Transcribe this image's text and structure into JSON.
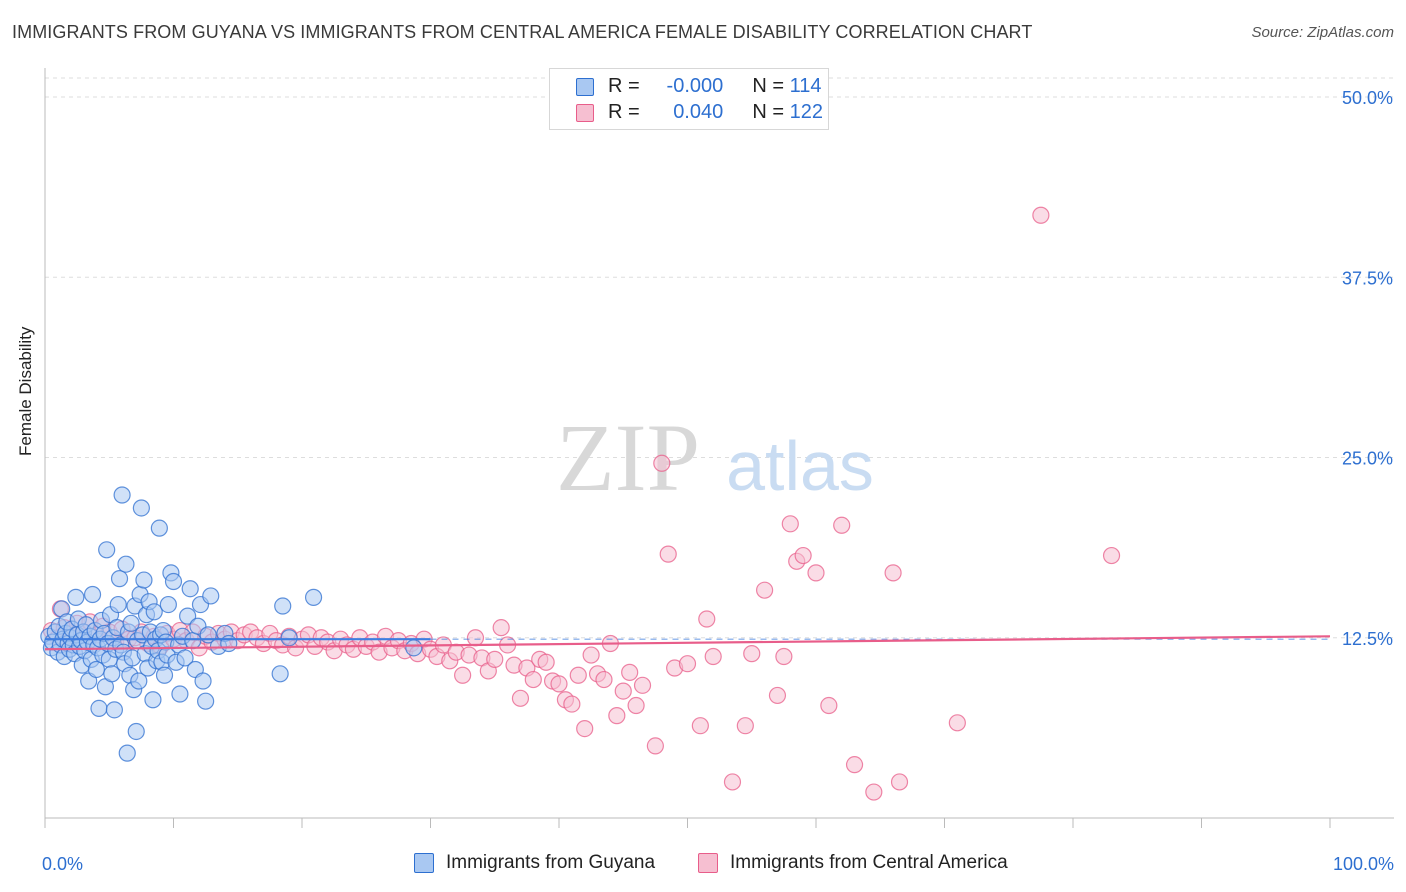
{
  "title": "IMMIGRANTS FROM GUYANA VS IMMIGRANTS FROM CENTRAL AMERICA FEMALE DISABILITY CORRELATION CHART",
  "source": "Source: ZipAtlas.com",
  "watermark": {
    "zip": "ZIP",
    "atlas": "atlas"
  },
  "colors": {
    "blue": "#2d6fd0",
    "blue_fill": "#a9c8f2",
    "blue_line": "#3d7de0",
    "pink": "#e85d8a",
    "pink_fill": "#f6bfd1",
    "grid": "#dddddd",
    "axis_label": "#2d6fd0"
  },
  "legend_top": {
    "rows": [
      {
        "r_label": "R =",
        "r_value": "-0.000",
        "n_label": "N =",
        "n_value": "114",
        "series": "blue"
      },
      {
        "r_label": "R =",
        "r_value": "0.040",
        "n_label": "N =",
        "n_value": "122",
        "series": "pink"
      }
    ]
  },
  "legend_bottom": [
    {
      "label": "Immigrants from Guyana",
      "series": "blue"
    },
    {
      "label": "Immigrants from Central America",
      "series": "pink"
    }
  ],
  "chart_data": {
    "type": "scatter",
    "title": "IMMIGRANTS FROM GUYANA VS IMMIGRANTS FROM CENTRAL AMERICA FEMALE DISABILITY CORRELATION CHART",
    "xlabel": "",
    "ylabel": "Female Disability",
    "xlim": [
      0,
      100
    ],
    "ylim": [
      0,
      50
    ],
    "x_tick_labels": [
      {
        "value": 0,
        "label": "0.0%"
      },
      {
        "value": 100,
        "label": "100.0%"
      }
    ],
    "y_tick_labels": [
      {
        "value": 12.5,
        "label": "12.5%"
      },
      {
        "value": 25.0,
        "label": "25.0%"
      },
      {
        "value": 37.5,
        "label": "37.5%"
      },
      {
        "value": 50.0,
        "label": "50.0%"
      }
    ],
    "series": [
      {
        "name": "Immigrants from Guyana",
        "color": "blue",
        "R": -0.0,
        "N": 114,
        "trend": {
          "x": [
            0,
            30
          ],
          "y": [
            12.4,
            12.4
          ],
          "dashed_extension_to": 100
        },
        "points": [
          [
            0.3,
            12.6
          ],
          [
            0.5,
            11.8
          ],
          [
            0.6,
            12.2
          ],
          [
            0.8,
            12.9
          ],
          [
            1.0,
            11.5
          ],
          [
            1.1,
            13.3
          ],
          [
            1.2,
            12.0
          ],
          [
            1.3,
            14.5
          ],
          [
            1.4,
            12.4
          ],
          [
            1.5,
            11.2
          ],
          [
            1.6,
            12.8
          ],
          [
            1.7,
            13.6
          ],
          [
            1.8,
            12.1
          ],
          [
            1.9,
            11.7
          ],
          [
            2.0,
            12.5
          ],
          [
            2.1,
            13.1
          ],
          [
            2.2,
            12.0
          ],
          [
            2.3,
            11.4
          ],
          [
            2.4,
            15.3
          ],
          [
            2.5,
            12.7
          ],
          [
            2.6,
            13.8
          ],
          [
            2.7,
            11.9
          ],
          [
            2.8,
            12.3
          ],
          [
            2.9,
            10.6
          ],
          [
            3.0,
            12.9
          ],
          [
            3.1,
            11.6
          ],
          [
            3.2,
            13.4
          ],
          [
            3.3,
            12.2
          ],
          [
            3.4,
            9.5
          ],
          [
            3.5,
            12.6
          ],
          [
            3.6,
            11.0
          ],
          [
            3.7,
            15.5
          ],
          [
            3.8,
            12.0
          ],
          [
            3.9,
            13.0
          ],
          [
            4.0,
            10.3
          ],
          [
            4.1,
            11.8
          ],
          [
            4.2,
            7.6
          ],
          [
            4.3,
            12.4
          ],
          [
            4.4,
            13.7
          ],
          [
            4.5,
            11.3
          ],
          [
            4.6,
            12.8
          ],
          [
            4.7,
            9.1
          ],
          [
            4.8,
            18.6
          ],
          [
            4.9,
            12.1
          ],
          [
            5.0,
            11.0
          ],
          [
            5.1,
            14.1
          ],
          [
            5.2,
            10.0
          ],
          [
            5.3,
            12.5
          ],
          [
            5.4,
            7.5
          ],
          [
            5.5,
            11.7
          ],
          [
            5.6,
            13.2
          ],
          [
            5.7,
            14.8
          ],
          [
            5.8,
            16.6
          ],
          [
            5.9,
            12.0
          ],
          [
            6.0,
            22.4
          ],
          [
            6.1,
            11.5
          ],
          [
            6.2,
            10.7
          ],
          [
            6.3,
            17.6
          ],
          [
            6.4,
            4.5
          ],
          [
            6.5,
            12.9
          ],
          [
            6.6,
            9.9
          ],
          [
            6.7,
            13.5
          ],
          [
            6.8,
            11.1
          ],
          [
            6.9,
            8.9
          ],
          [
            7.0,
            14.7
          ],
          [
            7.1,
            6.0
          ],
          [
            7.2,
            12.3
          ],
          [
            7.3,
            9.5
          ],
          [
            7.4,
            15.5
          ],
          [
            7.5,
            21.5
          ],
          [
            7.6,
            12.7
          ],
          [
            7.7,
            16.5
          ],
          [
            7.8,
            11.4
          ],
          [
            7.9,
            14.1
          ],
          [
            8.0,
            10.4
          ],
          [
            8.1,
            15.0
          ],
          [
            8.2,
            12.9
          ],
          [
            8.3,
            11.9
          ],
          [
            8.4,
            8.2
          ],
          [
            8.5,
            14.3
          ],
          [
            8.6,
            12.4
          ],
          [
            8.7,
            10.9
          ],
          [
            8.8,
            11.6
          ],
          [
            8.9,
            20.1
          ],
          [
            9.0,
            12.7
          ],
          [
            9.1,
            10.8
          ],
          [
            9.2,
            13.0
          ],
          [
            9.3,
            9.9
          ],
          [
            9.4,
            12.2
          ],
          [
            9.5,
            11.3
          ],
          [
            9.6,
            14.8
          ],
          [
            9.8,
            17.0
          ],
          [
            10.0,
            16.4
          ],
          [
            10.2,
            10.8
          ],
          [
            10.4,
            12.0
          ],
          [
            10.5,
            8.6
          ],
          [
            10.7,
            12.6
          ],
          [
            10.9,
            11.1
          ],
          [
            11.1,
            14.0
          ],
          [
            11.3,
            15.9
          ],
          [
            11.5,
            12.3
          ],
          [
            11.7,
            10.3
          ],
          [
            11.9,
            13.3
          ],
          [
            12.1,
            14.8
          ],
          [
            12.3,
            9.5
          ],
          [
            12.5,
            8.1
          ],
          [
            12.7,
            12.7
          ],
          [
            12.9,
            15.4
          ],
          [
            13.5,
            11.9
          ],
          [
            14.0,
            12.8
          ],
          [
            14.3,
            12.1
          ],
          [
            18.5,
            14.7
          ],
          [
            19.0,
            12.5
          ],
          [
            18.3,
            10.0
          ],
          [
            20.9,
            15.3
          ],
          [
            28.7,
            11.8
          ]
        ]
      },
      {
        "name": "Immigrants from Central America",
        "color": "pink",
        "R": 0.04,
        "N": 122,
        "trend": {
          "x": [
            0,
            100
          ],
          "y": [
            11.7,
            12.6
          ]
        },
        "points": [
          [
            0.5,
            13.0
          ],
          [
            1.0,
            12.5
          ],
          [
            1.2,
            14.5
          ],
          [
            1.5,
            13.2
          ],
          [
            2.0,
            12.8
          ],
          [
            2.5,
            13.5
          ],
          [
            3.0,
            12.9
          ],
          [
            3.5,
            13.6
          ],
          [
            4.0,
            12.7
          ],
          [
            4.5,
            13.3
          ],
          [
            5.0,
            12.9
          ],
          [
            5.5,
            12.2
          ],
          [
            6.0,
            13.1
          ],
          [
            6.5,
            12.4
          ],
          [
            7.0,
            12.5
          ],
          [
            7.5,
            12.9
          ],
          [
            8.0,
            12.1
          ],
          [
            8.5,
            12.6
          ],
          [
            9.0,
            11.9
          ],
          [
            9.5,
            12.8
          ],
          [
            10.0,
            12.4
          ],
          [
            10.5,
            13.0
          ],
          [
            11.0,
            12.3
          ],
          [
            11.5,
            12.9
          ],
          [
            12.0,
            11.8
          ],
          [
            12.5,
            12.6
          ],
          [
            13.0,
            12.2
          ],
          [
            13.5,
            12.8
          ],
          [
            14.0,
            12.4
          ],
          [
            14.5,
            12.9
          ],
          [
            15.0,
            12.3
          ],
          [
            15.5,
            12.7
          ],
          [
            16.0,
            12.9
          ],
          [
            16.5,
            12.5
          ],
          [
            17.0,
            12.1
          ],
          [
            17.5,
            12.8
          ],
          [
            18.0,
            12.3
          ],
          [
            18.5,
            12.0
          ],
          [
            19.0,
            12.6
          ],
          [
            19.5,
            11.8
          ],
          [
            20.0,
            12.4
          ],
          [
            20.5,
            12.7
          ],
          [
            21.0,
            11.9
          ],
          [
            21.5,
            12.5
          ],
          [
            22.0,
            12.2
          ],
          [
            22.5,
            11.6
          ],
          [
            23.0,
            12.4
          ],
          [
            23.5,
            12.0
          ],
          [
            24.0,
            11.7
          ],
          [
            24.5,
            12.5
          ],
          [
            25.0,
            11.9
          ],
          [
            25.5,
            12.2
          ],
          [
            26.0,
            11.5
          ],
          [
            26.5,
            12.6
          ],
          [
            27.0,
            11.8
          ],
          [
            27.5,
            12.3
          ],
          [
            28.0,
            11.6
          ],
          [
            28.5,
            12.1
          ],
          [
            29.0,
            11.4
          ],
          [
            29.5,
            12.4
          ],
          [
            30.0,
            11.7
          ],
          [
            30.5,
            11.2
          ],
          [
            31.0,
            12.0
          ],
          [
            31.5,
            10.9
          ],
          [
            32.0,
            11.5
          ],
          [
            32.5,
            9.9
          ],
          [
            33.0,
            11.3
          ],
          [
            33.5,
            12.5
          ],
          [
            34.0,
            11.1
          ],
          [
            34.5,
            10.2
          ],
          [
            35.0,
            11.0
          ],
          [
            35.5,
            13.2
          ],
          [
            36.0,
            12.0
          ],
          [
            36.5,
            10.6
          ],
          [
            37.0,
            8.3
          ],
          [
            37.5,
            10.4
          ],
          [
            38.0,
            9.6
          ],
          [
            38.5,
            11.0
          ],
          [
            39.0,
            10.8
          ],
          [
            39.5,
            9.5
          ],
          [
            40.0,
            9.3
          ],
          [
            40.5,
            8.2
          ],
          [
            41.0,
            7.9
          ],
          [
            41.5,
            9.9
          ],
          [
            42.0,
            6.2
          ],
          [
            42.5,
            11.3
          ],
          [
            43.0,
            10.0
          ],
          [
            43.5,
            9.6
          ],
          [
            44.0,
            12.1
          ],
          [
            44.5,
            7.1
          ],
          [
            45.0,
            8.8
          ],
          [
            45.5,
            10.1
          ],
          [
            46.0,
            7.8
          ],
          [
            46.5,
            9.2
          ],
          [
            47.5,
            5.0
          ],
          [
            48.0,
            24.6
          ],
          [
            48.5,
            18.3
          ],
          [
            49.0,
            10.4
          ],
          [
            50.0,
            10.7
          ],
          [
            51.0,
            6.4
          ],
          [
            51.5,
            13.8
          ],
          [
            52.0,
            11.2
          ],
          [
            53.5,
            2.5
          ],
          [
            54.5,
            6.4
          ],
          [
            55.0,
            11.4
          ],
          [
            56.0,
            15.8
          ],
          [
            57.0,
            8.5
          ],
          [
            57.5,
            11.2
          ],
          [
            58.0,
            20.4
          ],
          [
            58.5,
            17.8
          ],
          [
            59.0,
            18.2
          ],
          [
            60.0,
            17.0
          ],
          [
            61.0,
            7.8
          ],
          [
            62.0,
            20.3
          ],
          [
            63.0,
            3.7
          ],
          [
            64.5,
            1.8
          ],
          [
            66.0,
            17.0
          ],
          [
            66.5,
            2.5
          ],
          [
            71.0,
            6.6
          ],
          [
            77.5,
            41.8
          ],
          [
            83.0,
            18.2
          ]
        ]
      }
    ]
  }
}
